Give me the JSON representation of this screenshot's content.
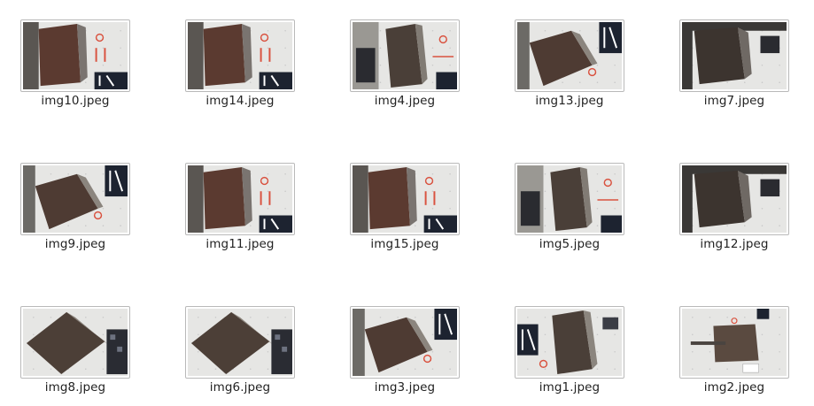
{
  "files": [
    {
      "name": "img10.jpeg",
      "icon": "image-thumbnail-icon",
      "scene": "red-dih"
    },
    {
      "name": "img14.jpeg",
      "icon": "image-thumbnail-icon",
      "scene": "red-dih"
    },
    {
      "name": "img4.jpeg",
      "icon": "image-thumbnail-icon",
      "scene": "panel-left"
    },
    {
      "name": "img13.jpeg",
      "icon": "image-thumbnail-icon",
      "scene": "ikh-right"
    },
    {
      "name": "img7.jpeg",
      "icon": "image-thumbnail-icon",
      "scene": "dark-corner"
    },
    {
      "name": "img9.jpeg",
      "icon": "image-thumbnail-icon",
      "scene": "ikh-right"
    },
    {
      "name": "img11.jpeg",
      "icon": "image-thumbnail-icon",
      "scene": "red-dih"
    },
    {
      "name": "img15.jpeg",
      "icon": "image-thumbnail-icon",
      "scene": "red-dih"
    },
    {
      "name": "img5.jpeg",
      "icon": "image-thumbnail-icon",
      "scene": "panel-left"
    },
    {
      "name": "img12.jpeg",
      "icon": "image-thumbnail-icon",
      "scene": "dark-corner"
    },
    {
      "name": "img8.jpeg",
      "icon": "image-thumbnail-icon",
      "scene": "panel-right"
    },
    {
      "name": "img6.jpeg",
      "icon": "image-thumbnail-icon",
      "scene": "panel-right"
    },
    {
      "name": "img3.jpeg",
      "icon": "image-thumbnail-icon",
      "scene": "ikh-right"
    },
    {
      "name": "img1.jpeg",
      "icon": "image-thumbnail-icon",
      "scene": "ikh-left"
    },
    {
      "name": "img2.jpeg",
      "icon": "image-thumbnail-icon",
      "scene": "flat-plate"
    }
  ],
  "colors": {
    "frame_border": "#b9b9b9",
    "label_text": "#222222",
    "background": "#ffffff"
  }
}
